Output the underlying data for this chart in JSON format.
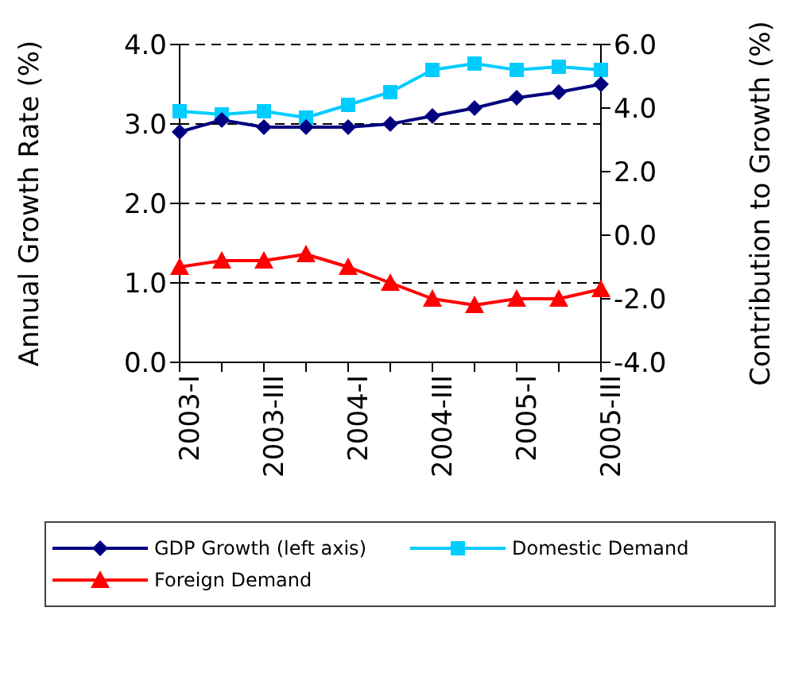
{
  "chart_data": {
    "type": "line",
    "categories": [
      "2003-I",
      null,
      "2003-III",
      null,
      "2004-I",
      null,
      "2004-III",
      null,
      "2005-I",
      null,
      "2005-III"
    ],
    "ylabel": "Annual Growth Rate (%)",
    "y2label": "Contribution to Growth (%)",
    "ylim": [
      0,
      4
    ],
    "yticks": [
      {
        "value": 0,
        "label": "0.0"
      },
      {
        "value": 1,
        "label": "1.0"
      },
      {
        "value": 2,
        "label": "2.0"
      },
      {
        "value": 3,
        "label": "3.0"
      },
      {
        "value": 4,
        "label": "4.0"
      }
    ],
    "y2lim": [
      -4,
      6
    ],
    "y2ticks": [
      {
        "value": -4,
        "label": "-4.0"
      },
      {
        "value": -2,
        "label": "-2.0"
      },
      {
        "value": 0,
        "label": "0.0"
      },
      {
        "value": 2,
        "label": "2.0"
      },
      {
        "value": 4,
        "label": "4.0"
      },
      {
        "value": 6,
        "label": "6.0"
      }
    ],
    "grid": "y",
    "legend": "bottom",
    "series": [
      {
        "name": "GDP Growth (left axis)",
        "color": "#000080",
        "marker": "diamond",
        "values": [
          2.9,
          3.05,
          2.96,
          2.96,
          2.96,
          3.0,
          3.1,
          3.2,
          3.33,
          3.4,
          3.5
        ]
      },
      {
        "name": "Domestic Demand",
        "color": "#00ccff",
        "marker": "square",
        "axis": "y2",
        "values": [
          3.9,
          3.8,
          3.9,
          3.7,
          4.1,
          4.5,
          5.2,
          5.4,
          5.2,
          5.3,
          5.2
        ]
      },
      {
        "name": "Foreign Demand",
        "color": "#ff0000",
        "marker": "triangle",
        "axis": "y2",
        "values": [
          -1.0,
          -0.8,
          -0.8,
          -0.6,
          -1.0,
          -1.5,
          -2.0,
          -2.2,
          -2.0,
          -2.0,
          -1.7
        ]
      }
    ]
  }
}
